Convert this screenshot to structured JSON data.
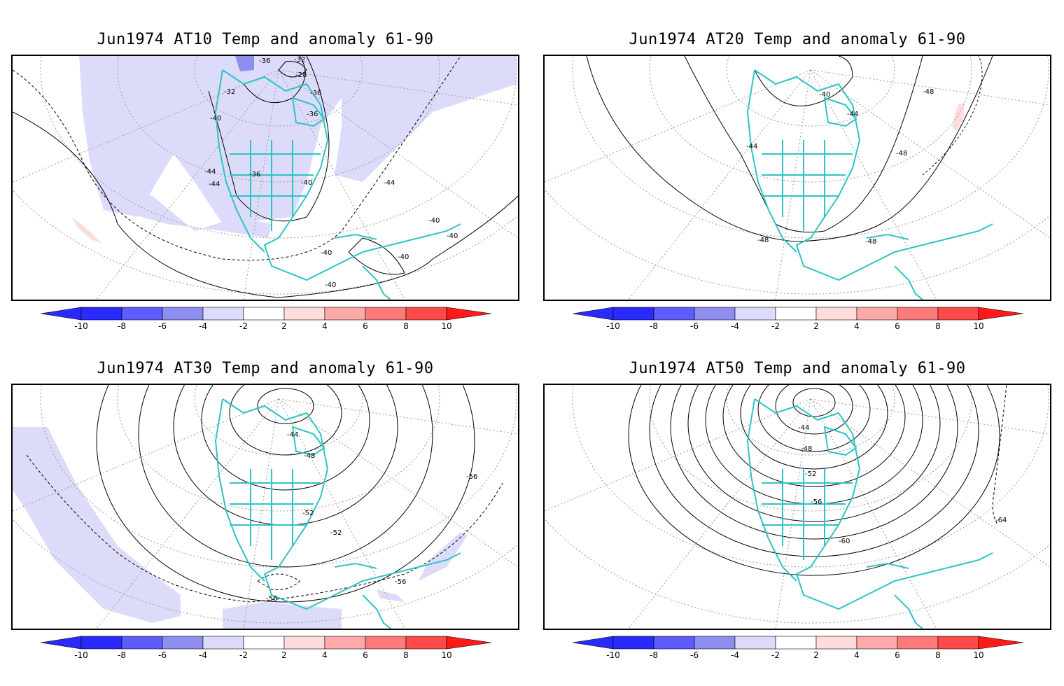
{
  "colors": {
    "land_outline": "#2ec4c4",
    "contour": "#000000",
    "grid": "#999999",
    "neg_anomaly": [
      "#2a2aff",
      "#5c5cff",
      "#8e8ef0",
      "#b8b8f4",
      "#dcdcfa"
    ],
    "pos_anomaly": [
      "#ffdcdc",
      "#ffaaaa",
      "#ff7a7a",
      "#ff4a4a",
      "#ff1a1a"
    ]
  },
  "colorbar": {
    "ticks": [
      "-10",
      "-8",
      "-6",
      "-4",
      "-2",
      "2",
      "4",
      "6",
      "8",
      "10"
    ]
  },
  "panels": [
    {
      "title": "Jun1974 AT10 Temp and anomaly 61-90",
      "contour_labels": [
        "-36",
        "-32",
        "-28",
        "-32",
        "-36",
        "-36",
        "-40",
        "-44",
        "-36",
        "-40",
        "-44",
        "-44",
        "-40",
        "-40",
        "-40",
        "-40",
        "-40"
      ]
    },
    {
      "title": "Jun1974 AT20 Temp and anomaly 61-90",
      "contour_labels": [
        "-40",
        "-44",
        "-48",
        "-44",
        "-48",
        "-48",
        "-48"
      ]
    },
    {
      "title": "Jun1974 AT30 Temp and anomaly 61-90",
      "contour_labels": [
        "-44",
        "-48",
        "-56",
        "-52",
        "-52",
        "-56",
        "-56"
      ]
    },
    {
      "title": "Jun1974 AT50 Temp and anomaly 61-90",
      "contour_labels": [
        "-44",
        "-48",
        "-52",
        "-56",
        "-60",
        "-64"
      ]
    }
  ]
}
